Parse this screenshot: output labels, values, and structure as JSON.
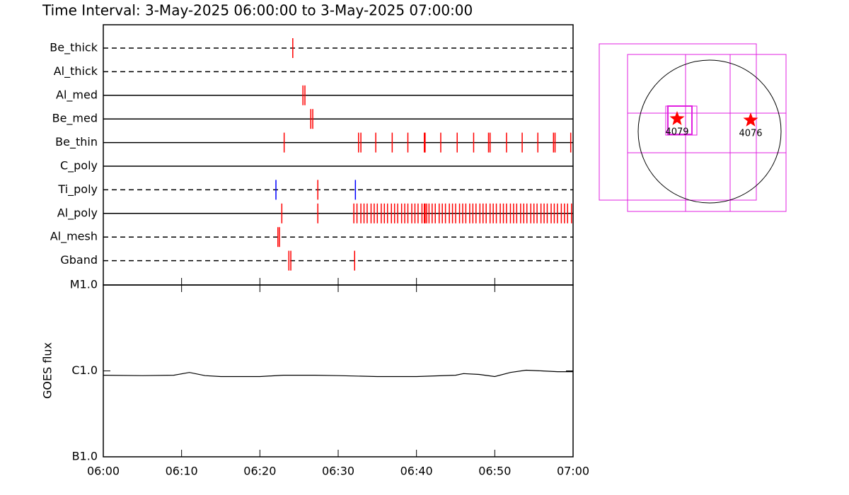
{
  "chart_data": [
    {
      "type": "timeline",
      "title": "Time Interval:  3-May-2025 06:00:00 to  3-May-2025 07:00:00",
      "xlim": [
        0,
        60
      ],
      "series": [
        {
          "name": "Be_thick",
          "line_style": "dashed",
          "color": "#ff0000",
          "values": [
            24.2
          ]
        },
        {
          "name": "Al_thick",
          "line_style": "dashed",
          "color": "#ff0000",
          "values": []
        },
        {
          "name": "Al_med",
          "line_style": "solid",
          "color": "#ff0000",
          "values": [
            25.5,
            25.75
          ]
        },
        {
          "name": "Be_med",
          "line_style": "solid",
          "color": "#ff0000",
          "values": [
            26.5,
            26.75
          ]
        },
        {
          "name": "Be_thin",
          "line_style": "solid",
          "color": "#ff0000",
          "values": [
            23.1,
            32.6,
            32.9,
            34.8,
            36.9,
            38.9,
            41.0,
            41.1,
            43.1,
            45.2,
            47.3,
            49.2,
            49.4,
            51.5,
            53.5,
            55.5,
            57.5,
            57.7,
            59.7
          ]
        },
        {
          "name": "C_poly",
          "line_style": "solid",
          "color": "#ff0000",
          "values": []
        },
        {
          "name": "Ti_poly",
          "line_style": "dashed",
          "color": "#ff0000",
          "colors": [
            "#0000ff",
            "#ff0000",
            "#0000ff"
          ],
          "values": [
            22.05,
            27.4,
            32.2
          ]
        },
        {
          "name": "Al_poly",
          "line_style": "solid",
          "color": "#ff0000",
          "values": [
            22.8,
            27.4,
            32.0,
            32.4,
            32.9,
            33.3,
            33.7,
            34.2,
            34.6,
            35.0,
            35.5,
            35.9,
            36.3,
            36.8,
            37.2,
            37.6,
            38.1,
            38.5,
            38.9,
            39.4,
            39.8,
            40.2,
            40.7,
            41.0,
            41.1,
            41.3,
            41.6,
            42.0,
            42.4,
            42.9,
            43.3,
            43.7,
            44.2,
            44.6,
            45.0,
            45.5,
            45.9,
            46.3,
            46.8,
            47.2,
            47.6,
            48.1,
            48.5,
            48.9,
            49.4,
            49.8,
            50.2,
            50.7,
            51.1,
            51.5,
            52.0,
            52.4,
            52.8,
            53.3,
            53.7,
            54.1,
            54.6,
            55.0,
            55.4,
            55.9,
            56.3,
            56.7,
            57.2,
            57.6,
            58.0,
            58.5,
            58.9,
            59.3,
            59.8
          ]
        },
        {
          "name": "Al_mesh",
          "line_style": "dashed",
          "color": "#ff0000",
          "values": [
            22.3,
            22.5
          ]
        },
        {
          "name": "Gband",
          "line_style": "dashed",
          "color": "#ff0000",
          "values": [
            23.7,
            23.95,
            32.1
          ]
        }
      ]
    },
    {
      "type": "line",
      "y_label": "GOES flux",
      "log_scale": true,
      "color": "#000000",
      "xlim": [
        0,
        60
      ],
      "xticks": [
        {
          "value": 0,
          "label": "06:00"
        },
        {
          "value": 10,
          "label": "06:10"
        },
        {
          "value": 20,
          "label": "06:20"
        },
        {
          "value": 30,
          "label": "06:30"
        },
        {
          "value": 40,
          "label": "06:40"
        },
        {
          "value": 50,
          "label": "06:50"
        },
        {
          "value": 60,
          "label": "07:00"
        }
      ],
      "ylim": [
        1e-07,
        1e-05
      ],
      "yticks": [
        {
          "value": 1e-07,
          "label": "B1.0"
        },
        {
          "value": 1e-06,
          "label": "C1.0"
        },
        {
          "value": 1e-05,
          "label": "M1.0"
        }
      ],
      "x": [
        0,
        5,
        9,
        11,
        13,
        15,
        20,
        23,
        27,
        30,
        35,
        40,
        45,
        46,
        48,
        50,
        52,
        54,
        56,
        58,
        60
      ],
      "values": [
        8.9e-07,
        8.8e-07,
        8.9e-07,
        9.6e-07,
        8.8e-07,
        8.6e-07,
        8.6e-07,
        8.9e-07,
        8.9e-07,
        8.8e-07,
        8.6e-07,
        8.6e-07,
        8.9e-07,
        9.3e-07,
        9.1e-07,
        8.6e-07,
        9.6e-07,
        1.02e-06,
        1e-06,
        9.8e-07,
        9.8e-07
      ]
    }
  ],
  "sun_map": {
    "active_regions": [
      {
        "label": "4079"
      },
      {
        "label": "4076"
      }
    ]
  }
}
